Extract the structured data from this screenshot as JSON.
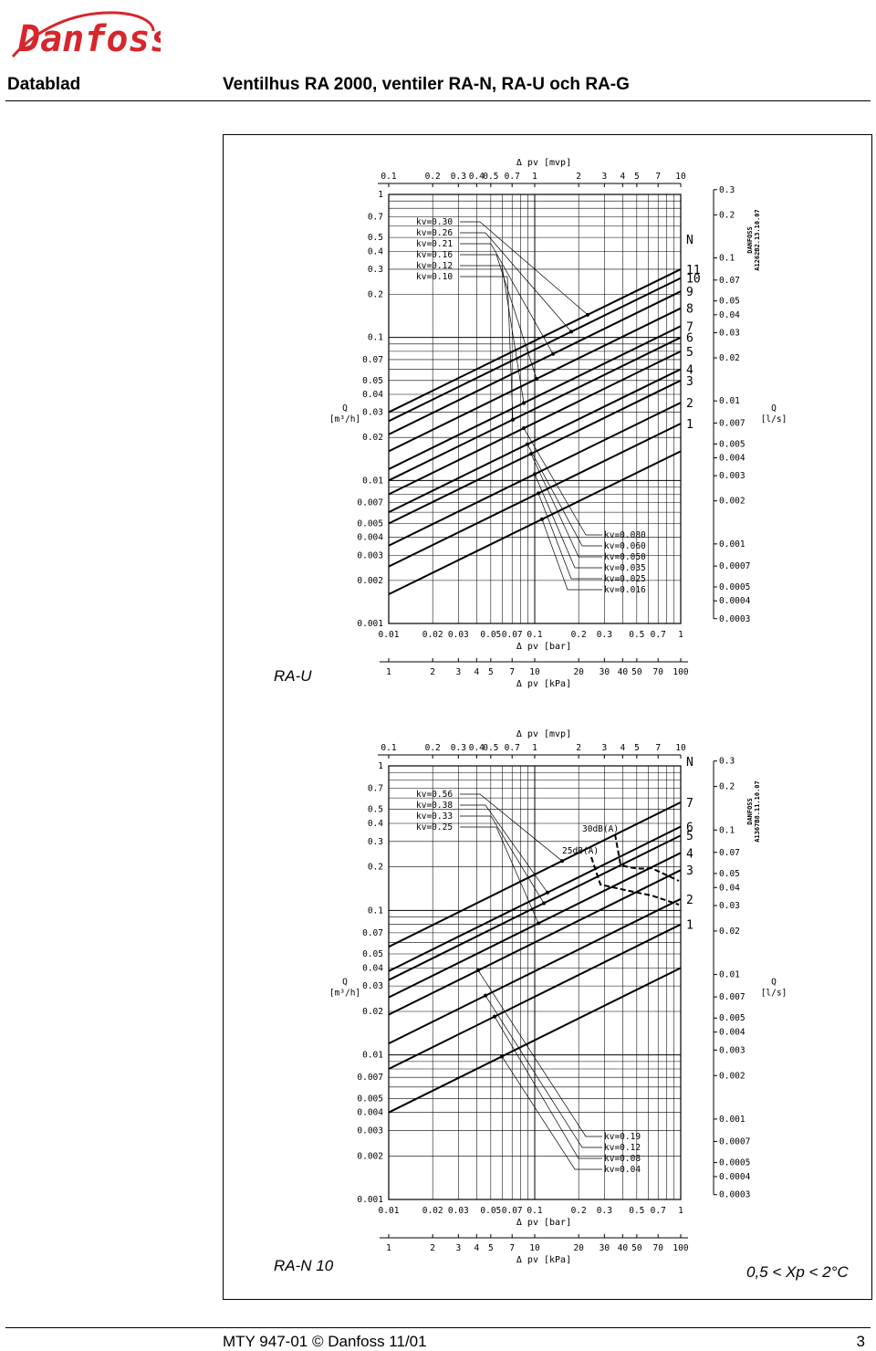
{
  "header": {
    "brand": "Danfoss",
    "section": "Datablad",
    "title": "Ventilhus RA 2000, ventiler RA-N, RA-U och RA-G"
  },
  "footer": {
    "text": "MTY 947-01 © Danfoss 11/01",
    "page": "3"
  },
  "colors": {
    "ink": "#000000",
    "brand": "#d7262b"
  },
  "chart_data": [
    {
      "type": "line",
      "caption": "RA-U",
      "drawing_ref": "A1262B2.13.10.07",
      "stamp": "DANFOSS",
      "scale": "log-log",
      "x_top": {
        "label": "Δ pv [mvp]",
        "ticks": [
          "0.1",
          "0.2",
          "0.3",
          "0.4",
          "0.5",
          "0.7",
          "1",
          "2",
          "3",
          "4",
          "5",
          "7",
          "10"
        ],
        "values": [
          0.1,
          0.2,
          0.3,
          0.4,
          0.5,
          0.7,
          1,
          2,
          3,
          4,
          5,
          7,
          10
        ]
      },
      "x_bottom": {
        "label": "Δ pv [bar]",
        "ticks": [
          "0.01",
          "0.02",
          "0.03",
          "0.05",
          "0.07",
          "0.1",
          "0.2",
          "0.3",
          "0.5",
          "0.7",
          "1"
        ],
        "values": [
          0.01,
          0.02,
          0.03,
          0.05,
          0.07,
          0.1,
          0.2,
          0.3,
          0.5,
          0.7,
          1
        ]
      },
      "x_kpa": {
        "label": "Δ pv [kPa]",
        "ticks": [
          "1",
          "2",
          "3",
          "4",
          "5",
          "7",
          "10",
          "20",
          "30",
          "40",
          "50",
          "70",
          "100"
        ],
        "values": [
          1,
          2,
          3,
          4,
          5,
          7,
          10,
          20,
          30,
          40,
          50,
          70,
          100
        ]
      },
      "y_left": {
        "label_line1": "Q",
        "label_line2": "[m³/h]",
        "ticks": [
          "1",
          "0.7",
          "0.5",
          "0.4",
          "0.3",
          "0.2",
          "0.1",
          "0.07",
          "0.05",
          "0.04",
          "0.03",
          "0.02",
          "0.01",
          "0.007",
          "0.005",
          "0.004",
          "0.003",
          "0.002",
          "0.001"
        ],
        "values": [
          1,
          0.7,
          0.5,
          0.4,
          0.3,
          0.2,
          0.1,
          0.07,
          0.05,
          0.04,
          0.03,
          0.02,
          0.01,
          0.007,
          0.005,
          0.004,
          0.003,
          0.002,
          0.001
        ],
        "range": [
          0.001,
          1
        ]
      },
      "y_right": {
        "label_line1": "Q",
        "label_line2": "[l/s]",
        "ticks": [
          "0.3",
          "0.2",
          "0.1",
          "0.07",
          "0.05",
          "0.04",
          "0.03",
          "0.02",
          "0.01",
          "0.007",
          "0.005",
          "0.004",
          "0.003",
          "0.002",
          "0.001",
          "0.0007",
          "0.0005",
          "0.0004",
          "0.0003"
        ],
        "values": [
          0.3,
          0.2,
          0.1,
          0.07,
          0.05,
          0.04,
          0.03,
          0.02,
          0.01,
          0.007,
          0.005,
          0.004,
          0.003,
          0.002,
          0.001,
          0.0007,
          0.0005,
          0.0004,
          0.0003
        ]
      },
      "setting_header": "N",
      "settings": [
        "N",
        "11",
        "10",
        "9",
        "8",
        "7",
        "6",
        "5",
        "4",
        "3",
        "2",
        "1"
      ],
      "series": [
        {
          "name": "kv=0.30",
          "kv": 0.3
        },
        {
          "name": "kv=0.26",
          "kv": 0.26
        },
        {
          "name": "kv=0.21",
          "kv": 0.21
        },
        {
          "name": "kv=0.16",
          "kv": 0.16
        },
        {
          "name": "kv=0.12",
          "kv": 0.12
        },
        {
          "name": "kv=0.10",
          "kv": 0.1
        },
        {
          "name": "kv=0.080",
          "kv": 0.08
        },
        {
          "name": "kv=0.060",
          "kv": 0.06
        },
        {
          "name": "kv=0.050",
          "kv": 0.05
        },
        {
          "name": "kv=0.035",
          "kv": 0.035
        },
        {
          "name": "kv=0.025",
          "kv": 0.025
        },
        {
          "name": "kv=0.016",
          "kv": 0.016
        }
      ]
    },
    {
      "type": "line",
      "caption": "RA-N 10",
      "note": "0,5 < Xp < 2°C",
      "drawing_ref": "A1367B8.11.10.07",
      "stamp": "DANFOSS",
      "scale": "log-log",
      "x_top": {
        "label": "Δ pv [mvp]",
        "ticks": [
          "0.1",
          "0.2",
          "0.3",
          "0.4",
          "0.5",
          "0.7",
          "1",
          "2",
          "3",
          "4",
          "5",
          "7",
          "10"
        ],
        "values": [
          0.1,
          0.2,
          0.3,
          0.4,
          0.5,
          0.7,
          1,
          2,
          3,
          4,
          5,
          7,
          10
        ]
      },
      "x_bottom": {
        "label": "Δ pv [bar]",
        "ticks": [
          "0.01",
          "0.02",
          "0.03",
          "0.05",
          "0.07",
          "0.1",
          "0.2",
          "0.3",
          "0.5",
          "0.7",
          "1"
        ],
        "values": [
          0.01,
          0.02,
          0.03,
          0.05,
          0.07,
          0.1,
          0.2,
          0.3,
          0.5,
          0.7,
          1
        ]
      },
      "x_kpa": {
        "label": "Δ pv [kPa]",
        "ticks": [
          "1",
          "2",
          "3",
          "4",
          "5",
          "7",
          "10",
          "20",
          "30",
          "40",
          "50",
          "70",
          "100"
        ],
        "values": [
          1,
          2,
          3,
          4,
          5,
          7,
          10,
          20,
          30,
          40,
          50,
          70,
          100
        ]
      },
      "y_left": {
        "label_line1": "Q",
        "label_line2": "[m³/h]",
        "ticks": [
          "1",
          "0.7",
          "0.5",
          "0.4",
          "0.3",
          "0.2",
          "0.1",
          "0.07",
          "0.05",
          "0.04",
          "0.03",
          "0.02",
          "0.01",
          "0.007",
          "0.005",
          "0.004",
          "0.003",
          "0.002",
          "0.001"
        ],
        "values": [
          1,
          0.7,
          0.5,
          0.4,
          0.3,
          0.2,
          0.1,
          0.07,
          0.05,
          0.04,
          0.03,
          0.02,
          0.01,
          0.007,
          0.005,
          0.004,
          0.003,
          0.002,
          0.001
        ],
        "range": [
          0.001,
          1
        ]
      },
      "y_right": {
        "label_line1": "Q",
        "label_line2": "[l/s]",
        "ticks": [
          "0.3",
          "0.2",
          "0.1",
          "0.07",
          "0.05",
          "0.04",
          "0.03",
          "0.02",
          "0.01",
          "0.007",
          "0.005",
          "0.004",
          "0.003",
          "0.002",
          "0.001",
          "0.0007",
          "0.0005",
          "0.0004",
          "0.0003"
        ],
        "values": [
          0.3,
          0.2,
          0.1,
          0.07,
          0.05,
          0.04,
          0.03,
          0.02,
          0.01,
          0.007,
          0.005,
          0.004,
          0.003,
          0.002,
          0.001,
          0.0007,
          0.0005,
          0.0004,
          0.0003
        ]
      },
      "setting_header": "N",
      "settings": [
        "N",
        "7",
        "6",
        "5",
        "4",
        "3",
        "2",
        "1"
      ],
      "noise_labels": [
        "30dB(A)",
        "25dB(A)"
      ],
      "series": [
        {
          "name": "kv=0.56",
          "kv": 0.56
        },
        {
          "name": "kv=0.38",
          "kv": 0.38
        },
        {
          "name": "kv=0.33",
          "kv": 0.33
        },
        {
          "name": "kv=0.25",
          "kv": 0.25
        },
        {
          "name": "kv=0.19",
          "kv": 0.19
        },
        {
          "name": "kv=0.12",
          "kv": 0.12
        },
        {
          "name": "kv=0.08",
          "kv": 0.08
        },
        {
          "name": "kv=0.04",
          "kv": 0.04
        }
      ]
    }
  ]
}
